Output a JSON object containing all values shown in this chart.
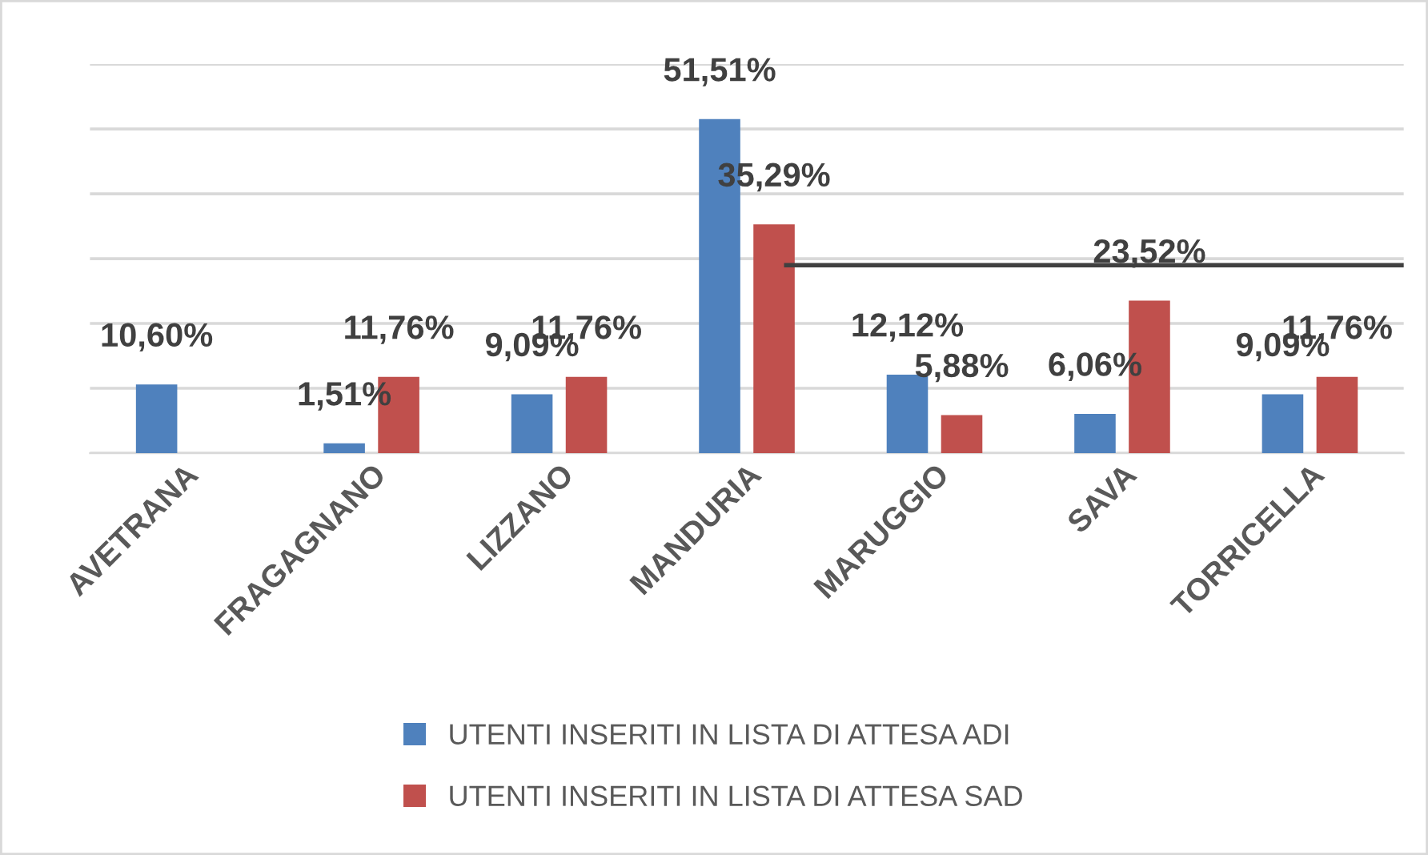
{
  "chart_data": {
    "type": "bar",
    "categories": [
      "AVETRANA",
      "FRAGAGNANO",
      "LIZZANO",
      "MANDURIA",
      "MARUGGIO",
      "SAVA",
      "TORRICELLA"
    ],
    "series": [
      {
        "name": "UTENTI INSERITI IN LISTA DI ATTESA ADI",
        "color": "#4f81bd",
        "values": [
          10.6,
          1.51,
          9.09,
          51.51,
          12.12,
          6.06,
          9.09
        ],
        "value_labels": [
          "10,60%",
          "1,51%",
          "9,09%",
          "51,51%",
          "12,12%",
          "6,06%",
          "9,09%"
        ]
      },
      {
        "name": "UTENTI INSERITI IN LISTA DI ATTESA SAD",
        "color": "#c0504d",
        "values": [
          null,
          11.76,
          11.76,
          35.29,
          5.88,
          23.52,
          11.76
        ],
        "value_labels": [
          null,
          "11,76%",
          "11,76%",
          "35,29%",
          "5,88%",
          "23,52%",
          "11,76%"
        ]
      }
    ],
    "ylim": [
      0,
      60
    ],
    "yticks": [
      {
        "value": 0,
        "label": null
      },
      {
        "value": 10,
        "label": null
      },
      {
        "value": 20,
        "label": null
      },
      {
        "value": 30,
        "label": null
      },
      {
        "value": 40,
        "label": null
      },
      {
        "value": 50,
        "label": null
      },
      {
        "value": 60,
        "label": null
      }
    ],
    "tick_labels": "x",
    "grid": "y",
    "legend": "bottom",
    "ref_lines": [
      {
        "axis": "y",
        "value": 29,
        "color": "#404040"
      }
    ]
  }
}
